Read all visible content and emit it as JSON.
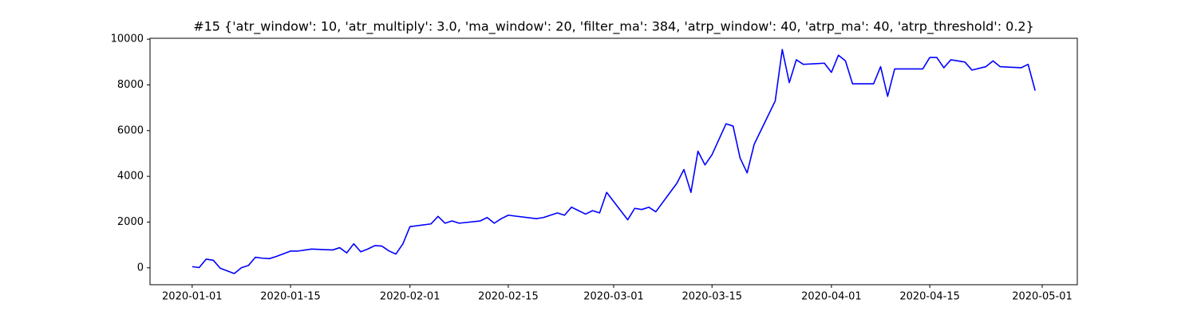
{
  "chart_data": {
    "type": "line",
    "title": "#15 {'atr_window': 10, 'atr_multiply': 3.0, 'ma_window': 20, 'filter_ma': 384, 'atrp_window': 40, 'atrp_ma': 40, 'atrp_threshold': 0.2}",
    "color": "#0000ff",
    "x": [
      "2020-01-01",
      "2020-01-02",
      "2020-01-03",
      "2020-01-04",
      "2020-01-05",
      "2020-01-07",
      "2020-01-08",
      "2020-01-09",
      "2020-01-10",
      "2020-01-11",
      "2020-01-12",
      "2020-01-13",
      "2020-01-15",
      "2020-01-16",
      "2020-01-18",
      "2020-01-21",
      "2020-01-22",
      "2020-01-23",
      "2020-01-24",
      "2020-01-25",
      "2020-01-26",
      "2020-01-27",
      "2020-01-28",
      "2020-01-29",
      "2020-01-30",
      "2020-01-31",
      "2020-02-01",
      "2020-02-04",
      "2020-02-05",
      "2020-02-06",
      "2020-02-07",
      "2020-02-08",
      "2020-02-11",
      "2020-02-12",
      "2020-02-13",
      "2020-02-14",
      "2020-02-15",
      "2020-02-19",
      "2020-02-20",
      "2020-02-22",
      "2020-02-23",
      "2020-02-24",
      "2020-02-25",
      "2020-02-26",
      "2020-02-27",
      "2020-02-28",
      "2020-02-29",
      "2020-03-01",
      "2020-03-03",
      "2020-03-04",
      "2020-03-05",
      "2020-03-06",
      "2020-03-07",
      "2020-03-10",
      "2020-03-11",
      "2020-03-12",
      "2020-03-13",
      "2020-03-14",
      "2020-03-15",
      "2020-03-17",
      "2020-03-18",
      "2020-03-19",
      "2020-03-20",
      "2020-03-21",
      "2020-03-24",
      "2020-03-25",
      "2020-03-26",
      "2020-03-27",
      "2020-03-28",
      "2020-03-31",
      "2020-04-01",
      "2020-04-02",
      "2020-04-03",
      "2020-04-04",
      "2020-04-07",
      "2020-04-08",
      "2020-04-09",
      "2020-04-10",
      "2020-04-14",
      "2020-04-15",
      "2020-04-16",
      "2020-04-17",
      "2020-04-18",
      "2020-04-20",
      "2020-04-21",
      "2020-04-23",
      "2020-04-24",
      "2020-04-25",
      "2020-04-28",
      "2020-04-29",
      "2020-04-30"
    ],
    "values": [
      50,
      10,
      380,
      330,
      -20,
      -250,
      0,
      100,
      460,
      420,
      400,
      500,
      730,
      730,
      820,
      780,
      880,
      650,
      1050,
      700,
      820,
      970,
      950,
      740,
      600,
      1050,
      1800,
      1920,
      2250,
      1950,
      2050,
      1950,
      2050,
      2200,
      1950,
      2150,
      2300,
      2150,
      2200,
      2400,
      2300,
      2650,
      2500,
      2350,
      2500,
      2400,
      3300,
      2900,
      2100,
      2600,
      2550,
      2650,
      2450,
      3700,
      4300,
      3300,
      5100,
      4500,
      4950,
      6300,
      6200,
      4800,
      4150,
      5400,
      7300,
      9550,
      8100,
      9100,
      8900,
      8950,
      8550,
      9300,
      9050,
      8050,
      8050,
      8800,
      7500,
      8700,
      8700,
      9200,
      9200,
      8750,
      9100,
      9000,
      8650,
      8800,
      9050,
      8800,
      8750,
      8900,
      7750
    ],
    "xlim": [
      "2019-12-26",
      "2020-05-06"
    ],
    "xticks": [
      "2020-01-01",
      "2020-01-15",
      "2020-02-01",
      "2020-02-15",
      "2020-03-01",
      "2020-03-15",
      "2020-04-01",
      "2020-04-15",
      "2020-05-01"
    ],
    "ylim": [
      -740,
      10040
    ],
    "yticks": [
      0,
      2000,
      4000,
      6000,
      8000,
      10000
    ]
  }
}
